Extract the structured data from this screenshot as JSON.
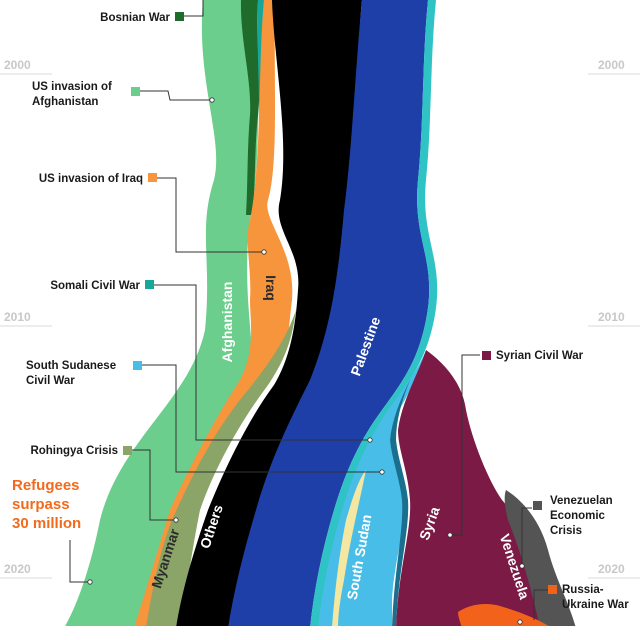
{
  "chart_data": {
    "type": "area",
    "layout": "streamgraph",
    "title": "",
    "years": [
      1990,
      2000,
      2010,
      2020,
      2022
    ],
    "year_labels": [
      {
        "year": "2000",
        "left": true,
        "right": true
      },
      {
        "year": "2010",
        "left": true,
        "right": true
      },
      {
        "year": "2020",
        "left": true,
        "right": true
      }
    ],
    "series": [
      {
        "name": "Afghanistan",
        "color": "#6cce8c",
        "label": "Afghanistan"
      },
      {
        "name": "Bosnia",
        "color": "#1f6b2c",
        "label": ""
      },
      {
        "name": "Somalia",
        "color": "#17a79a",
        "label": ""
      },
      {
        "name": "Iraq",
        "color": "#f7953c",
        "label": "Iraq"
      },
      {
        "name": "Myanmar",
        "color": "#8ba468",
        "label": "Myanmar"
      },
      {
        "name": "Others",
        "color": "#000000",
        "label": "Others"
      },
      {
        "name": "Palestine",
        "color": "#1f3fa8",
        "label": "Palestine"
      },
      {
        "name": "South Sudan",
        "color": "#47bde8",
        "label": "South Sudan"
      },
      {
        "name": "Syria",
        "color": "#7a1a45",
        "label": "Syria"
      },
      {
        "name": "Venezuela",
        "color": "#545454",
        "label": "Venezuela"
      },
      {
        "name": "Ukraine",
        "color": "#f2621a",
        "label": ""
      }
    ],
    "annotations": [
      {
        "text": "Bosnian War",
        "color": "#1f6b2c"
      },
      {
        "text": "US invasion of Afghanistan",
        "color": "#6cce8c"
      },
      {
        "text": "US invasion of Iraq",
        "color": "#f7953c"
      },
      {
        "text": "Somali Civil War",
        "color": "#17a79a"
      },
      {
        "text": "South Sudanese Civil War",
        "color": "#47bde8"
      },
      {
        "text": "Rohingya Crisis",
        "color": "#8ba468"
      },
      {
        "text": "Syrian Civil War",
        "color": "#7a1a45"
      },
      {
        "text": "Venezuelan Economic Crisis",
        "color": "#545454"
      },
      {
        "text": "Russia-Ukraine War",
        "color": "#f2621a"
      }
    ],
    "callout": {
      "text": "Refugees surpass 30 million",
      "color": "#f26a1b"
    }
  }
}
